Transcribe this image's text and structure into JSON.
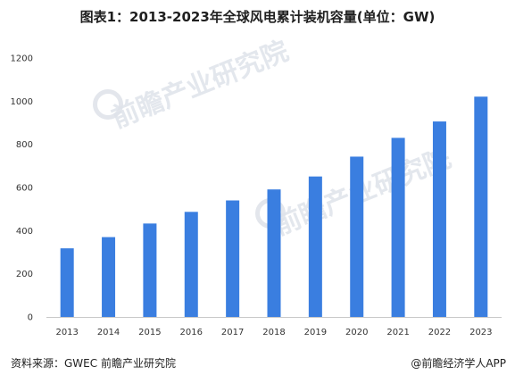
{
  "header": {
    "title": "图表1：2013-2023年全球风电累计装机容量(单位：GW)"
  },
  "chart_data": {
    "type": "bar",
    "title": "图表1：2013-2023年全球风电累计装机容量(单位：GW)",
    "xlabel": "",
    "ylabel": "",
    "categories": [
      "2013",
      "2014",
      "2015",
      "2016",
      "2017",
      "2018",
      "2019",
      "2020",
      "2021",
      "2022",
      "2023"
    ],
    "values": [
      318,
      370,
      433,
      487,
      540,
      591,
      651,
      743,
      830,
      906,
      1021
    ],
    "ylim": [
      0,
      1200
    ],
    "yticks": [
      0,
      200,
      400,
      600,
      800,
      1000,
      1200
    ],
    "grid": false,
    "bar_color": "#3a7ee0"
  },
  "footer": {
    "source": "资料来源：GWEC 前瞻产业研究院",
    "credit": "@前瞻经济学人APP"
  },
  "watermark": {
    "text": "前瞻产业研究院"
  }
}
